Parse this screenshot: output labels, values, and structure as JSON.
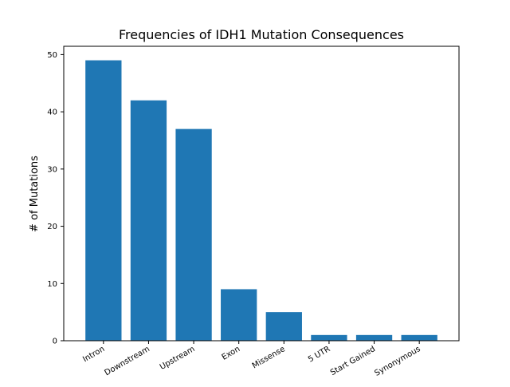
{
  "chart_data": {
    "type": "bar",
    "title": "Frequencies of IDH1 Mutation Consequences",
    "xlabel": "",
    "ylabel": "# of Mutations",
    "categories": [
      "Intron",
      "Downstream",
      "Upstream",
      "Exon",
      "Missense",
      "5 UTR",
      "Start Gained",
      "Synonymous"
    ],
    "values": [
      49,
      42,
      37,
      9,
      5,
      1,
      1,
      1
    ],
    "ylim": [
      0,
      51.45
    ],
    "yticks": [
      0,
      10,
      20,
      30,
      40,
      50
    ],
    "bar_color": "#1f77b4",
    "grid": false,
    "legend": "none"
  }
}
